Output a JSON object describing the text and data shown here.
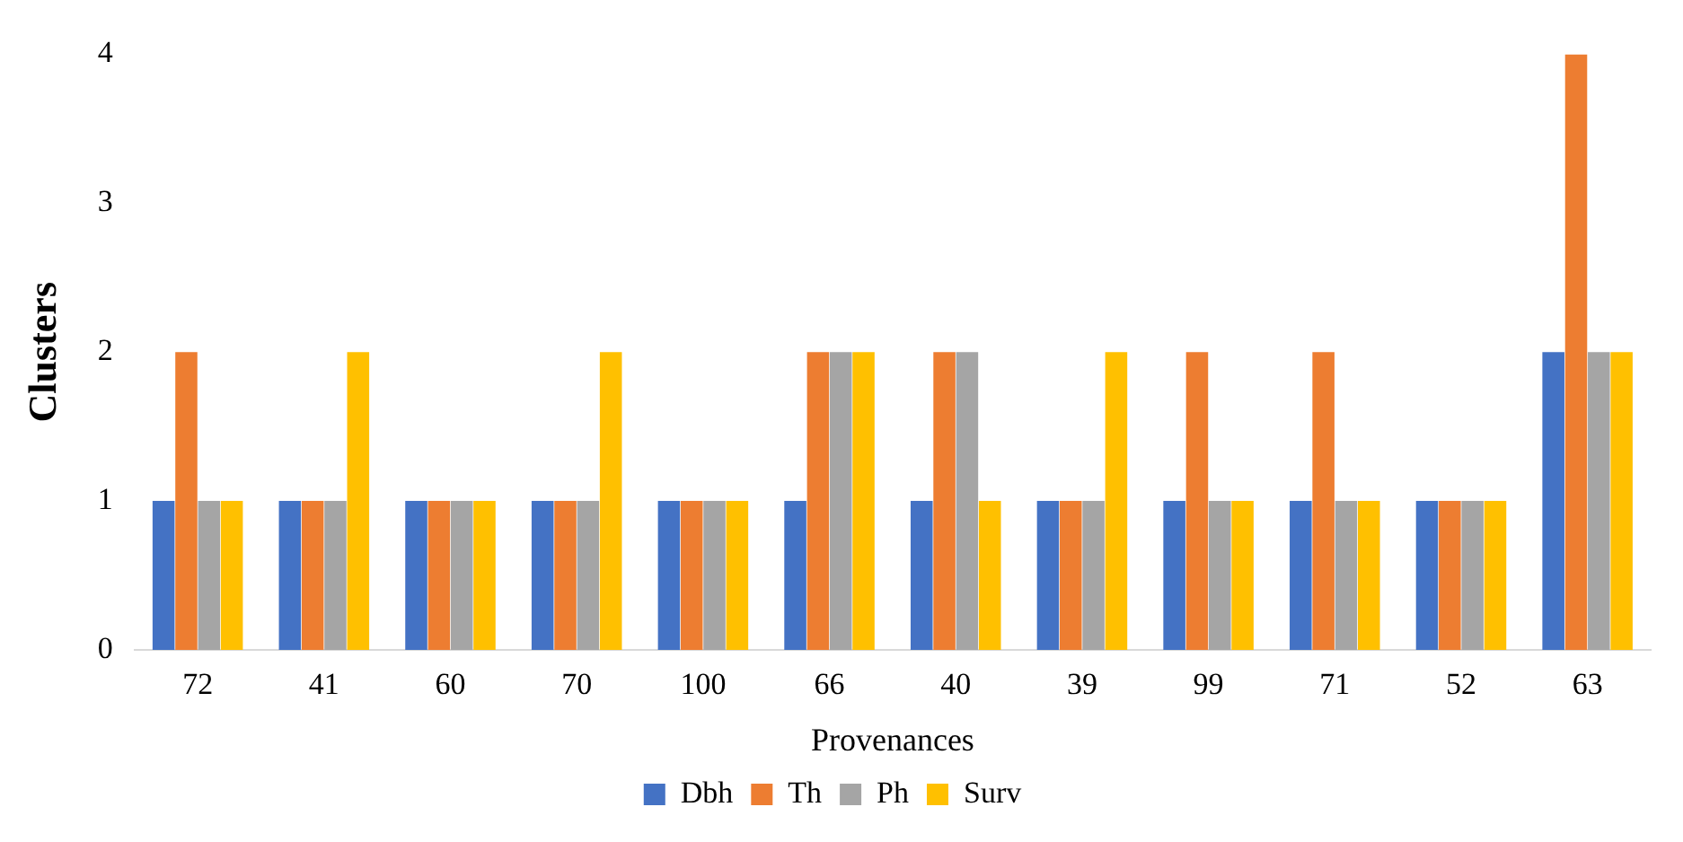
{
  "chart_data": {
    "type": "bar",
    "xlabel": "Provenances",
    "ylabel": "Clusters",
    "categories": [
      "72",
      "41",
      "60",
      "70",
      "100",
      "66",
      "40",
      "39",
      "99",
      "71",
      "52",
      "63"
    ],
    "series": [
      {
        "name": "Dbh",
        "color": "#4472c4",
        "values": [
          1,
          1,
          1,
          1,
          1,
          1,
          1,
          1,
          1,
          1,
          1,
          2
        ]
      },
      {
        "name": "Th",
        "color": "#ed7d31",
        "values": [
          2,
          1,
          1,
          1,
          1,
          2,
          2,
          1,
          2,
          2,
          1,
          4
        ]
      },
      {
        "name": "Ph",
        "color": "#a5a5a5",
        "values": [
          1,
          1,
          1,
          1,
          1,
          2,
          2,
          1,
          1,
          1,
          1,
          2
        ]
      },
      {
        "name": "Surv",
        "color": "#ffc000",
        "values": [
          1,
          2,
          1,
          2,
          1,
          2,
          1,
          2,
          1,
          1,
          1,
          2
        ]
      }
    ],
    "ylim": [
      0,
      4
    ],
    "yticks": [
      0,
      1,
      2,
      3,
      4
    ],
    "grid": false,
    "legend": "bottom"
  }
}
